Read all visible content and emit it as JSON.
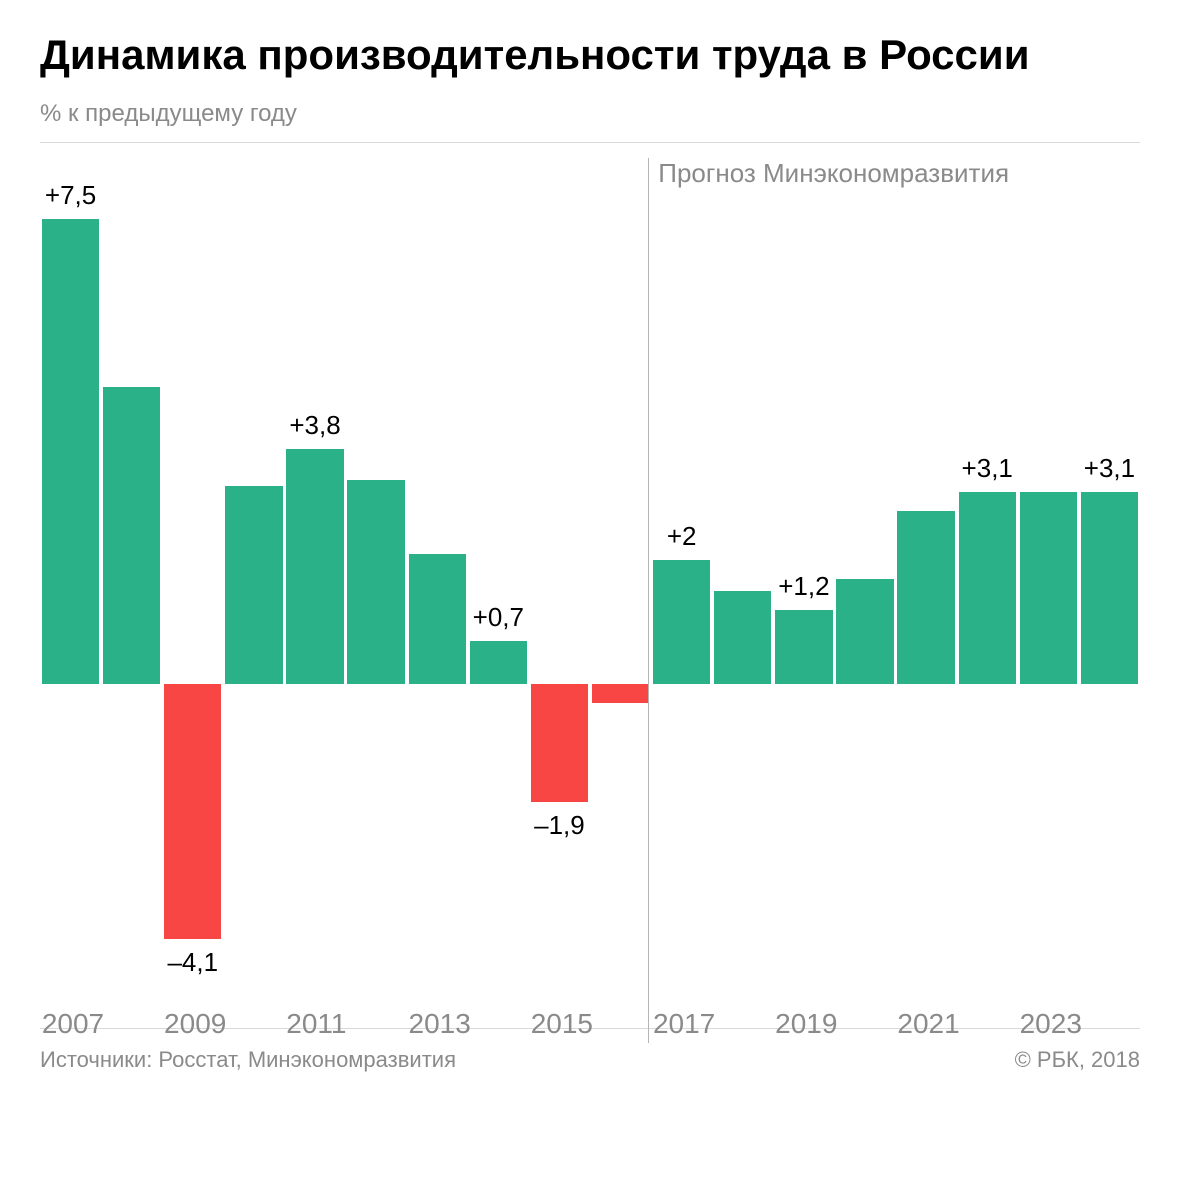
{
  "title": "Динамика производительности труда в России",
  "subtitle": "% к предыдущему году",
  "chart": {
    "type": "bar",
    "background_color": "#ffffff",
    "positive_color": "#2bb188",
    "negative_color": "#f74643",
    "axis_label_color": "#8a8a8a",
    "value_label_color": "#000000",
    "divider_color": "#b5b5b5",
    "title_fontsize": 42,
    "subtitle_fontsize": 24,
    "value_label_fontsize": 26,
    "x_label_fontsize": 28,
    "bar_width_ratio": 0.94,
    "bar_gap_ratio": 0.06,
    "ylim": [
      -4.5,
      8
    ],
    "baseline_y_ratio": 0.62,
    "forecast_divider_after_index": 9,
    "forecast_label": "Прогноз Минэкономразвития",
    "x_labels": [
      "2007",
      "2009",
      "2011",
      "2013",
      "2015",
      "2017",
      "2019",
      "2021",
      "2023"
    ],
    "x_label_bar_indices": [
      0,
      2,
      4,
      6,
      8,
      10,
      12,
      14,
      16
    ],
    "bars": [
      {
        "year": 2007,
        "value": 7.5,
        "label": "+7,5",
        "show_label": true
      },
      {
        "year": 2008,
        "value": 4.8,
        "label": "+4,8",
        "show_label": false
      },
      {
        "year": 2009,
        "value": -4.1,
        "label": "–4,1",
        "show_label": true
      },
      {
        "year": 2010,
        "value": 3.2,
        "label": "+3,2",
        "show_label": false
      },
      {
        "year": 2011,
        "value": 3.8,
        "label": "+3,8",
        "show_label": true
      },
      {
        "year": 2012,
        "value": 3.3,
        "label": "+3,3",
        "show_label": false
      },
      {
        "year": 2013,
        "value": 2.1,
        "label": "+2,1",
        "show_label": false
      },
      {
        "year": 2014,
        "value": 0.7,
        "label": "+0,7",
        "show_label": true
      },
      {
        "year": 2015,
        "value": -1.9,
        "label": "–1,9",
        "show_label": true
      },
      {
        "year": 2016,
        "value": -0.3,
        "label": "–0,3",
        "show_label": false
      },
      {
        "year": 2017,
        "value": 2.0,
        "label": "+2",
        "show_label": true
      },
      {
        "year": 2018,
        "value": 1.5,
        "label": "+1,5",
        "show_label": false
      },
      {
        "year": 2019,
        "value": 1.2,
        "label": "+1,2",
        "show_label": true
      },
      {
        "year": 2020,
        "value": 1.7,
        "label": "+1,7",
        "show_label": false
      },
      {
        "year": 2021,
        "value": 2.8,
        "label": "+2,8",
        "show_label": false
      },
      {
        "year": 2022,
        "value": 3.1,
        "label": "+3,1",
        "show_label": true
      },
      {
        "year": 2023,
        "value": 3.1,
        "label": "+3,1",
        "show_label": false
      },
      {
        "year": 2024,
        "value": 3.1,
        "label": "+3,1",
        "show_label": true
      }
    ]
  },
  "footer": {
    "sources": "Источники: Росстат, Минэкономразвития",
    "copyright": "© РБК, 2018"
  }
}
